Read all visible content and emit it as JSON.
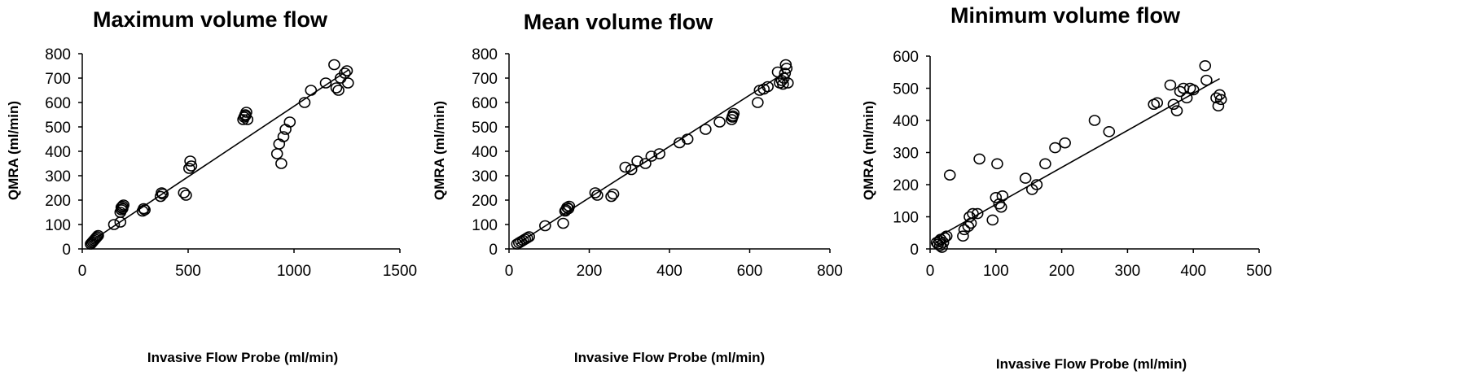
{
  "chart_data": [
    {
      "type": "scatter",
      "title": "Maximum volume flow",
      "xlabel": "Invasive Flow Probe (ml/min)",
      "ylabel": "QMRA (ml/min)",
      "xlim": [
        0,
        1500
      ],
      "ylim": [
        0,
        800
      ],
      "xticks": [
        0,
        500,
        1000,
        1500
      ],
      "yticks": [
        0,
        100,
        200,
        300,
        400,
        500,
        600,
        700,
        800
      ],
      "xtick_labels": [
        "0",
        "500",
        "1000",
        "1500"
      ],
      "ytick_labels": [
        "0",
        "100",
        "200",
        "300",
        "400",
        "500",
        "600",
        "700",
        "800"
      ],
      "trendline": [
        [
          40,
          30
        ],
        [
          1260,
          735
        ]
      ],
      "points": [
        [
          40,
          20
        ],
        [
          45,
          25
        ],
        [
          50,
          30
        ],
        [
          55,
          35
        ],
        [
          60,
          40
        ],
        [
          65,
          45
        ],
        [
          70,
          50
        ],
        [
          75,
          55
        ],
        [
          150,
          100
        ],
        [
          180,
          110
        ],
        [
          180,
          150
        ],
        [
          185,
          160
        ],
        [
          185,
          170
        ],
        [
          190,
          175
        ],
        [
          195,
          180
        ],
        [
          190,
          165
        ],
        [
          285,
          155
        ],
        [
          290,
          165
        ],
        [
          295,
          160
        ],
        [
          370,
          215
        ],
        [
          375,
          230
        ],
        [
          380,
          225
        ],
        [
          480,
          230
        ],
        [
          490,
          220
        ],
        [
          505,
          330
        ],
        [
          510,
          360
        ],
        [
          515,
          340
        ],
        [
          760,
          530
        ],
        [
          765,
          540
        ],
        [
          770,
          550
        ],
        [
          775,
          560
        ],
        [
          780,
          530
        ],
        [
          770,
          545
        ],
        [
          920,
          390
        ],
        [
          930,
          430
        ],
        [
          940,
          350
        ],
        [
          950,
          460
        ],
        [
          960,
          490
        ],
        [
          980,
          520
        ],
        [
          1050,
          600
        ],
        [
          1080,
          650
        ],
        [
          1150,
          680
        ],
        [
          1190,
          755
        ],
        [
          1200,
          660
        ],
        [
          1210,
          650
        ],
        [
          1220,
          700
        ],
        [
          1240,
          720
        ],
        [
          1250,
          730
        ],
        [
          1255,
          680
        ]
      ]
    },
    {
      "type": "scatter",
      "title": "Mean volume flow",
      "xlabel": "Invasive Flow Probe (ml/min)",
      "ylabel": "QMRA (ml/min)",
      "xlim": [
        0,
        800
      ],
      "ylim": [
        0,
        800
      ],
      "xticks": [
        0,
        200,
        400,
        600,
        800
      ],
      "yticks": [
        0,
        100,
        200,
        300,
        400,
        500,
        600,
        700,
        800
      ],
      "xtick_labels": [
        "0",
        "200",
        "400",
        "600",
        "800"
      ],
      "ytick_labels": [
        "0",
        "100",
        "200",
        "300",
        "400",
        "500",
        "600",
        "700",
        "800"
      ],
      "trendline": [
        [
          20,
          20
        ],
        [
          690,
          725
        ]
      ],
      "points": [
        [
          20,
          20
        ],
        [
          25,
          25
        ],
        [
          30,
          30
        ],
        [
          35,
          35
        ],
        [
          40,
          40
        ],
        [
          45,
          45
        ],
        [
          50,
          50
        ],
        [
          90,
          95
        ],
        [
          135,
          105
        ],
        [
          140,
          155
        ],
        [
          142,
          160
        ],
        [
          145,
          170
        ],
        [
          148,
          165
        ],
        [
          150,
          175
        ],
        [
          215,
          230
        ],
        [
          220,
          220
        ],
        [
          255,
          215
        ],
        [
          260,
          225
        ],
        [
          290,
          335
        ],
        [
          305,
          325
        ],
        [
          320,
          360
        ],
        [
          340,
          350
        ],
        [
          355,
          380
        ],
        [
          375,
          390
        ],
        [
          425,
          435
        ],
        [
          445,
          450
        ],
        [
          490,
          490
        ],
        [
          525,
          520
        ],
        [
          555,
          530
        ],
        [
          558,
          545
        ],
        [
          560,
          555
        ],
        [
          557,
          540
        ],
        [
          620,
          600
        ],
        [
          625,
          650
        ],
        [
          635,
          655
        ],
        [
          645,
          665
        ],
        [
          670,
          725
        ],
        [
          675,
          680
        ],
        [
          680,
          690
        ],
        [
          685,
          700
        ],
        [
          688,
          720
        ],
        [
          690,
          755
        ],
        [
          692,
          740
        ],
        [
          695,
          680
        ],
        [
          683,
          675
        ]
      ]
    },
    {
      "type": "scatter",
      "title": "Minimum volume flow",
      "xlabel": "Invasive Flow Probe (ml/min)",
      "ylabel": "QMRA (ml/min)",
      "xlim": [
        0,
        500
      ],
      "ylim": [
        0,
        600
      ],
      "xticks": [
        0,
        100,
        200,
        300,
        400,
        500
      ],
      "yticks": [
        0,
        100,
        200,
        300,
        400,
        500,
        600
      ],
      "xtick_labels": [
        "0",
        "100",
        "200",
        "300",
        "400",
        "500"
      ],
      "ytick_labels": [
        "0",
        "100",
        "200",
        "300",
        "400",
        "500",
        "600"
      ],
      "trendline": [
        [
          10,
          35
        ],
        [
          440,
          530
        ]
      ],
      "points": [
        [
          10,
          20
        ],
        [
          12,
          15
        ],
        [
          14,
          25
        ],
        [
          15,
          10
        ],
        [
          16,
          30
        ],
        [
          18,
          5
        ],
        [
          20,
          20
        ],
        [
          22,
          35
        ],
        [
          25,
          40
        ],
        [
          30,
          230
        ],
        [
          50,
          40
        ],
        [
          52,
          60
        ],
        [
          58,
          70
        ],
        [
          60,
          100
        ],
        [
          62,
          80
        ],
        [
          65,
          110
        ],
        [
          72,
          110
        ],
        [
          75,
          280
        ],
        [
          95,
          90
        ],
        [
          100,
          160
        ],
        [
          102,
          265
        ],
        [
          105,
          140
        ],
        [
          108,
          130
        ],
        [
          110,
          165
        ],
        [
          145,
          220
        ],
        [
          155,
          185
        ],
        [
          162,
          200
        ],
        [
          175,
          265
        ],
        [
          190,
          315
        ],
        [
          205,
          330
        ],
        [
          250,
          400
        ],
        [
          272,
          365
        ],
        [
          340,
          450
        ],
        [
          345,
          455
        ],
        [
          365,
          510
        ],
        [
          370,
          450
        ],
        [
          375,
          430
        ],
        [
          380,
          490
        ],
        [
          385,
          500
        ],
        [
          390,
          470
        ],
        [
          395,
          500
        ],
        [
          400,
          495
        ],
        [
          418,
          570
        ],
        [
          420,
          525
        ],
        [
          435,
          470
        ],
        [
          438,
          445
        ],
        [
          440,
          480
        ],
        [
          442,
          465
        ]
      ]
    }
  ]
}
